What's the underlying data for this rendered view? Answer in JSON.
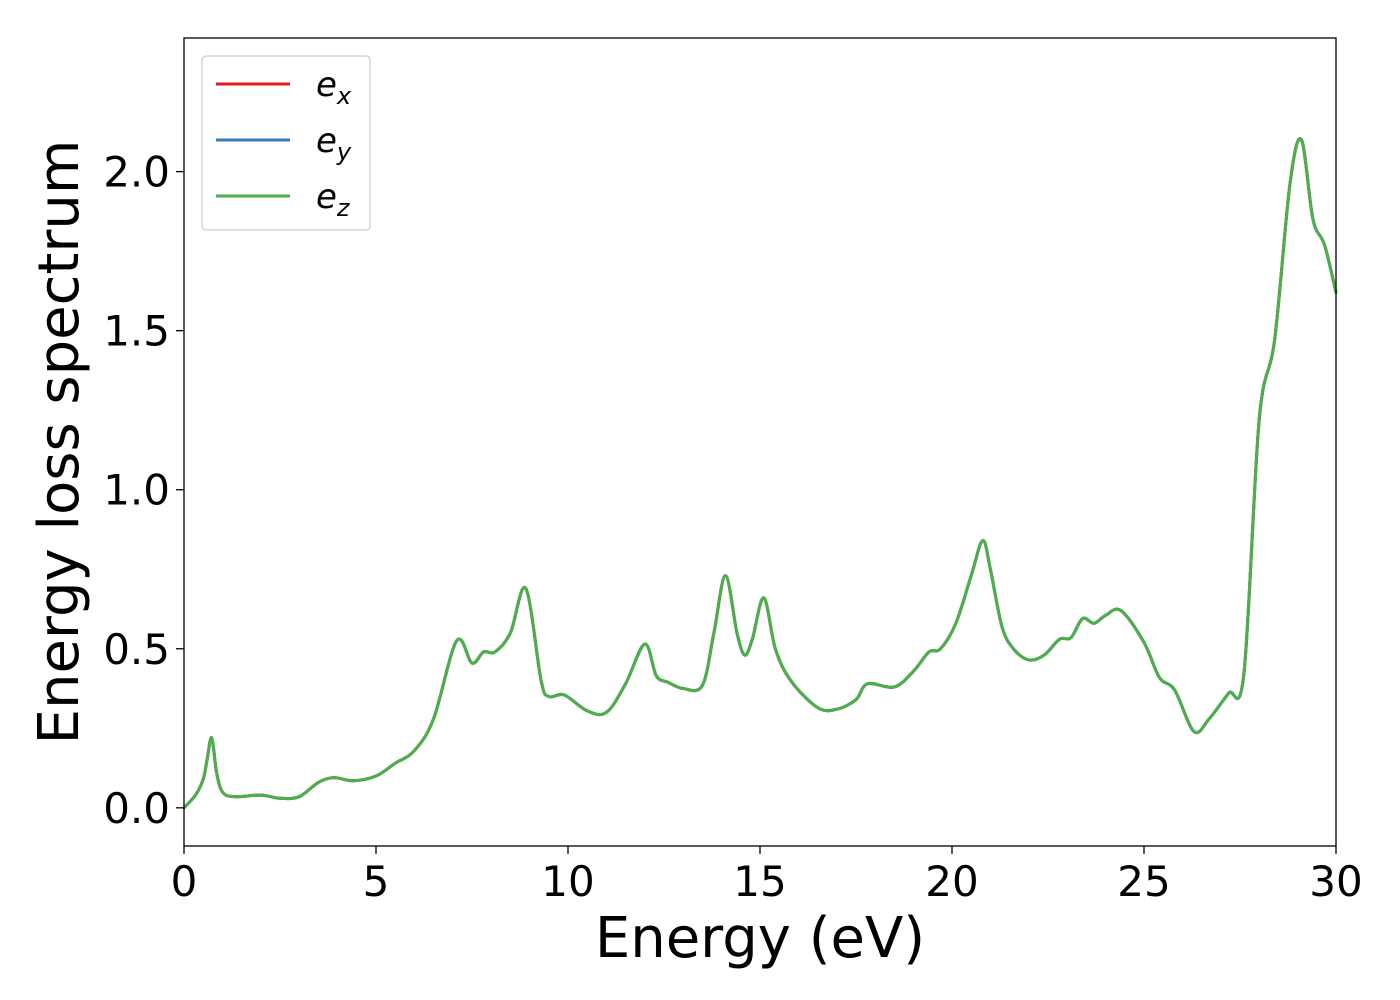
{
  "chart_data": {
    "type": "line",
    "xlabel": "Energy (eV)",
    "ylabel": "Energy loss spectrum",
    "xlim": [
      0,
      30
    ],
    "ylim": [
      -0.12,
      2.42
    ],
    "x_ticks": [
      0,
      5,
      10,
      15,
      20,
      25,
      30
    ],
    "x_tick_labels": [
      "0",
      "5",
      "10",
      "15",
      "20",
      "25",
      "30"
    ],
    "y_ticks": [
      0.0,
      0.5,
      1.0,
      1.5,
      2.0
    ],
    "y_tick_labels": [
      "0.0",
      "0.5",
      "1.0",
      "1.5",
      "2.0"
    ],
    "grid": false,
    "legend_position": "top-left",
    "x": [
      0,
      0.3,
      0.5,
      0.6,
      0.72,
      0.85,
      1.0,
      1.3,
      2.0,
      2.5,
      3.0,
      3.5,
      3.9,
      4.4,
      5.0,
      5.5,
      6.0,
      6.5,
      7.1,
      7.5,
      7.8,
      8.1,
      8.5,
      8.9,
      9.3,
      9.5,
      9.9,
      10.5,
      11.0,
      11.5,
      12.0,
      12.3,
      12.6,
      13.0,
      13.5,
      13.8,
      14.1,
      14.4,
      14.6,
      14.8,
      15.1,
      15.4,
      15.8,
      16.5,
      17.0,
      17.5,
      17.8,
      18.5,
      19.0,
      19.4,
      19.7,
      20.1,
      20.5,
      20.8,
      21.0,
      21.3,
      21.6,
      22.0,
      22.4,
      22.8,
      23.1,
      23.4,
      23.7,
      24.0,
      24.4,
      25.0,
      25.4,
      25.8,
      26.3,
      26.7,
      27.2,
      27.6,
      28.0,
      28.4,
      28.8,
      29.1,
      29.4,
      29.7,
      30.0
    ],
    "series": [
      {
        "name": "e_x",
        "color": "#e41a1c",
        "values": [
          0.0,
          0.04,
          0.09,
          0.15,
          0.22,
          0.11,
          0.05,
          0.035,
          0.04,
          0.03,
          0.035,
          0.08,
          0.095,
          0.085,
          0.1,
          0.14,
          0.18,
          0.28,
          0.525,
          0.455,
          0.49,
          0.49,
          0.55,
          0.69,
          0.4,
          0.35,
          0.355,
          0.305,
          0.3,
          0.39,
          0.515,
          0.415,
          0.395,
          0.375,
          0.385,
          0.55,
          0.73,
          0.55,
          0.48,
          0.53,
          0.66,
          0.5,
          0.4,
          0.315,
          0.31,
          0.34,
          0.39,
          0.38,
          0.43,
          0.49,
          0.5,
          0.58,
          0.73,
          0.84,
          0.75,
          0.57,
          0.5,
          0.465,
          0.48,
          0.53,
          0.535,
          0.595,
          0.58,
          0.605,
          0.62,
          0.52,
          0.41,
          0.37,
          0.24,
          0.28,
          0.36,
          0.42,
          1.22,
          1.47,
          1.96,
          2.1,
          1.85,
          1.77,
          1.62
        ]
      },
      {
        "name": "e_y",
        "color": "#377eb8",
        "values": [
          0.0,
          0.04,
          0.09,
          0.15,
          0.22,
          0.11,
          0.05,
          0.035,
          0.04,
          0.03,
          0.035,
          0.08,
          0.095,
          0.085,
          0.1,
          0.14,
          0.18,
          0.28,
          0.525,
          0.455,
          0.49,
          0.49,
          0.55,
          0.69,
          0.4,
          0.35,
          0.355,
          0.305,
          0.3,
          0.39,
          0.515,
          0.415,
          0.395,
          0.375,
          0.385,
          0.55,
          0.73,
          0.55,
          0.48,
          0.53,
          0.66,
          0.5,
          0.4,
          0.315,
          0.31,
          0.34,
          0.39,
          0.38,
          0.43,
          0.49,
          0.5,
          0.58,
          0.73,
          0.84,
          0.75,
          0.57,
          0.5,
          0.465,
          0.48,
          0.53,
          0.535,
          0.595,
          0.58,
          0.605,
          0.62,
          0.52,
          0.41,
          0.37,
          0.24,
          0.28,
          0.36,
          0.42,
          1.22,
          1.47,
          1.96,
          2.1,
          1.85,
          1.77,
          1.62
        ]
      },
      {
        "name": "e_z",
        "color": "#4daf4a",
        "values": [
          0.0,
          0.04,
          0.09,
          0.15,
          0.22,
          0.11,
          0.05,
          0.035,
          0.04,
          0.03,
          0.035,
          0.08,
          0.095,
          0.085,
          0.1,
          0.14,
          0.18,
          0.28,
          0.525,
          0.455,
          0.49,
          0.49,
          0.55,
          0.69,
          0.4,
          0.35,
          0.355,
          0.305,
          0.3,
          0.39,
          0.515,
          0.415,
          0.395,
          0.375,
          0.385,
          0.55,
          0.73,
          0.55,
          0.48,
          0.53,
          0.66,
          0.5,
          0.4,
          0.315,
          0.31,
          0.34,
          0.39,
          0.38,
          0.43,
          0.49,
          0.5,
          0.58,
          0.73,
          0.84,
          0.75,
          0.57,
          0.5,
          0.465,
          0.48,
          0.53,
          0.535,
          0.595,
          0.58,
          0.605,
          0.62,
          0.52,
          0.41,
          0.37,
          0.24,
          0.28,
          0.36,
          0.42,
          1.22,
          1.47,
          1.96,
          2.1,
          1.85,
          1.77,
          1.62
        ]
      }
    ],
    "legend": [
      {
        "base": "e",
        "sub": "x",
        "color": "#e41a1c"
      },
      {
        "base": "e",
        "sub": "y",
        "color": "#377eb8"
      },
      {
        "base": "e",
        "sub": "z",
        "color": "#4daf4a"
      }
    ]
  }
}
